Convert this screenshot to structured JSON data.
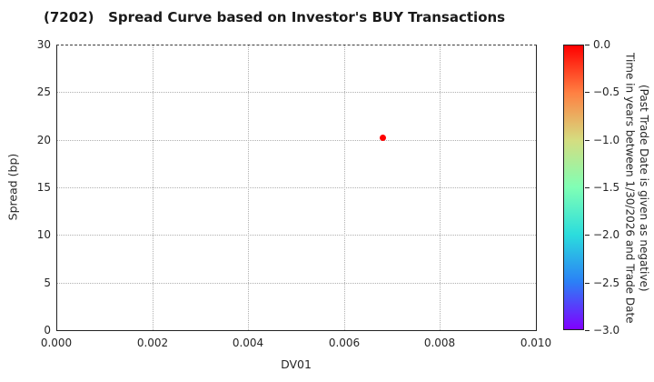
{
  "title": "(7202)   Spread Curve based on Investor's BUY Transactions",
  "chart_data": {
    "type": "scatter",
    "title": "(7202)   Spread Curve based on Investor's BUY Transactions",
    "xlabel": "DV01",
    "ylabel": "Spread (bp)",
    "xlim": [
      0.0,
      0.01
    ],
    "ylim": [
      0,
      30
    ],
    "grid": true,
    "grid_style": "dotted",
    "x_tick_labels": [
      "0.000",
      "0.002",
      "0.004",
      "0.006",
      "0.008",
      "0.010"
    ],
    "y_tick_labels": [
      "0",
      "5",
      "10",
      "15",
      "20",
      "25",
      "30"
    ],
    "points": [
      {
        "x": 0.0068,
        "y": 20.2,
        "color_value": 0.0,
        "color": "#ff0000"
      }
    ],
    "colorbar": {
      "label_line1": "Time in years between 1/30/2026 and Trade Date",
      "label_line2": "(Past Trade Date is given as negative)",
      "tick_labels": [
        "0.0",
        "−0.5",
        "−1.0",
        "−1.5",
        "−2.0",
        "−2.5",
        "−3.0"
      ],
      "value_range": [
        0.0,
        -3.0
      ],
      "gradient_stops": [
        "#ff0000",
        "#ff8042",
        "#d5dd80",
        "#80ffb5",
        "#2bdddd",
        "#2b80f6",
        "#8000ff"
      ]
    },
    "colors": {
      "spine": "#222222",
      "gridline": "#b0b0b0",
      "point_red": "#ff0000"
    }
  }
}
